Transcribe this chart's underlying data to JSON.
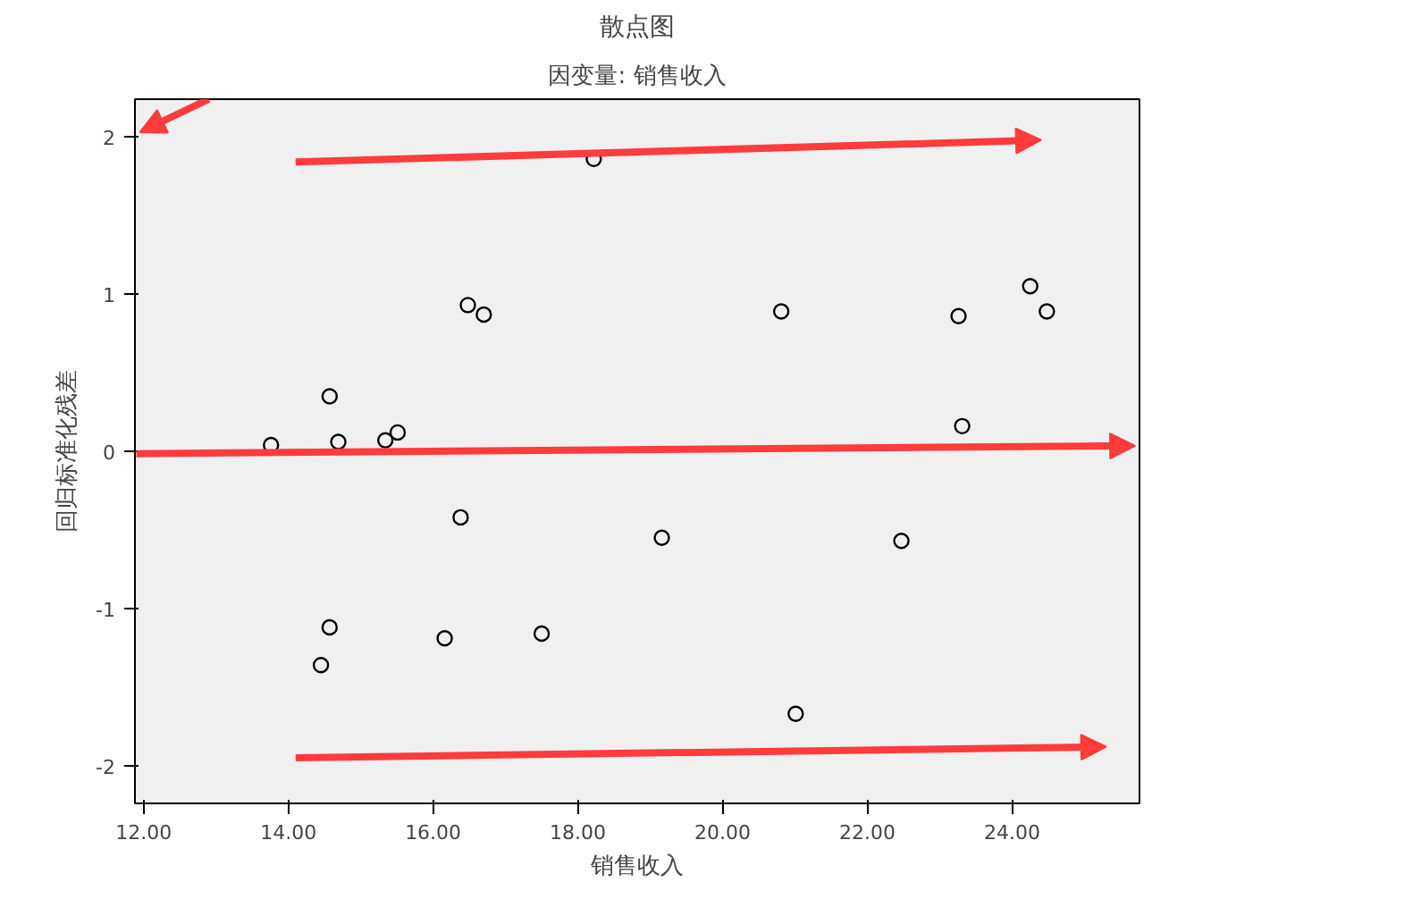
{
  "chart_data": {
    "type": "scatter",
    "title": "散点图",
    "subtitle": "因变量: 销售收入",
    "xlabel": "销售收入",
    "ylabel": "回归标准化残差",
    "x": [
      13.76,
      14.57,
      14.69,
      15.34,
      15.51,
      16.48,
      16.7,
      16.38,
      14.57,
      14.45,
      16.16,
      17.5,
      18.22,
      19.16,
      20.81,
      21.01,
      22.47,
      23.26,
      23.31,
      24.25,
      24.48
    ],
    "values": [
      0.04,
      0.35,
      0.06,
      0.07,
      0.12,
      0.93,
      0.87,
      -0.42,
      -1.12,
      -1.36,
      -1.19,
      -1.16,
      1.86,
      -0.55,
      0.89,
      -1.67,
      -0.57,
      0.86,
      0.16,
      1.05,
      0.89
    ],
    "color": "#000000",
    "marker": "circle",
    "grid": false,
    "xlim": [
      11.88,
      25.76
    ],
    "ylim": [
      -2.24,
      2.24
    ],
    "xticks": [
      {
        "value": 12,
        "label": "12.00"
      },
      {
        "value": 14,
        "label": "14.00"
      },
      {
        "value": 16,
        "label": "16.00"
      },
      {
        "value": 18,
        "label": "18.00"
      },
      {
        "value": 20,
        "label": "20.00"
      },
      {
        "value": 22,
        "label": "22.00"
      },
      {
        "value": 24,
        "label": "24.00"
      }
    ],
    "yticks": [
      2,
      1,
      0,
      -1,
      -2
    ]
  }
}
